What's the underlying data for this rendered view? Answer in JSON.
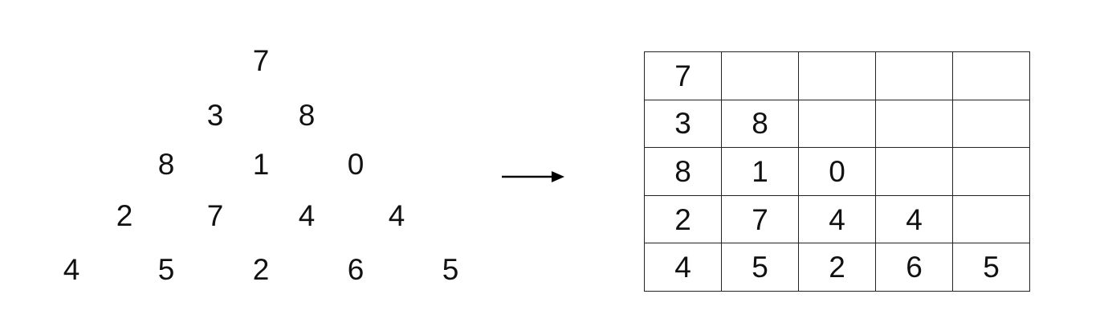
{
  "triangle": {
    "rows": [
      [
        "7"
      ],
      [
        "3",
        "8"
      ],
      [
        "8",
        "1",
        "0"
      ],
      [
        "2",
        "7",
        "4",
        "4"
      ],
      [
        "4",
        "5",
        "2",
        "6",
        "5"
      ]
    ]
  },
  "grid": {
    "rows": [
      [
        "7",
        "",
        "",
        "",
        ""
      ],
      [
        "3",
        "8",
        "",
        "",
        ""
      ],
      [
        "8",
        "1",
        "0",
        "",
        ""
      ],
      [
        "2",
        "7",
        "4",
        "4",
        ""
      ],
      [
        "4",
        "5",
        "2",
        "6",
        "5"
      ]
    ]
  },
  "arrow": {
    "icon": "right-arrow-icon",
    "color": "#000000"
  }
}
